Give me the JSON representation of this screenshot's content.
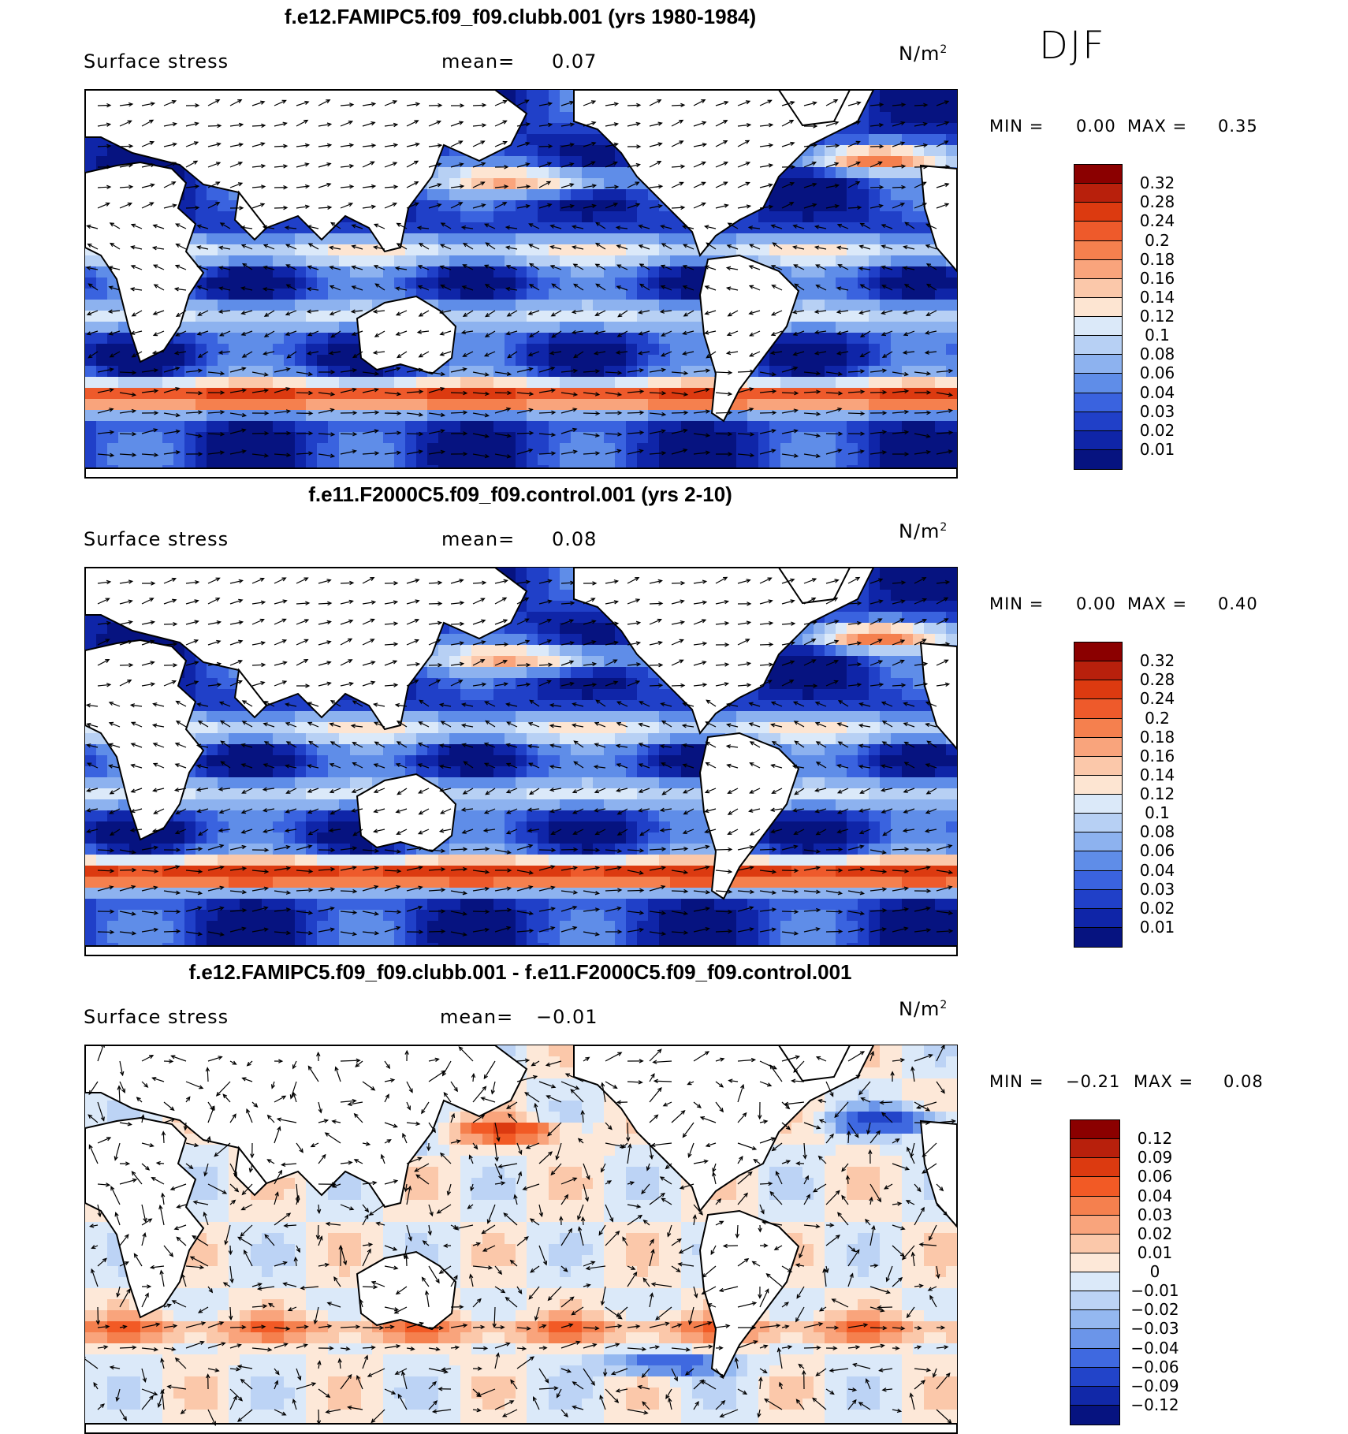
{
  "season_label": "DJF",
  "panels": [
    {
      "id": "p1",
      "title": "f.e12.FAMIPC5.f09_f09.clubb.001 (yrs 1980-1984)",
      "field_label": "Surface stress",
      "mean_label": "mean=",
      "mean_value": "0.07",
      "units_base": "N/m",
      "units_exp": "2",
      "min_label": "MIN =",
      "min_value": "0.00",
      "max_label": "MAX =",
      "max_value": "0.35",
      "colorbar_ticks": [
        "0.32",
        "0.28",
        "0.24",
        "0.2",
        "0.18",
        "0.16",
        "0.14",
        "0.12",
        "0.1",
        "0.08",
        "0.06",
        "0.04",
        "0.03",
        "0.02",
        "0.01"
      ],
      "colorbar_colors": [
        "#8b0000",
        "#b8200c",
        "#dc3a10",
        "#ee5a2b",
        "#f5804e",
        "#f9a47c",
        "#fbc8aa",
        "#fde5d2",
        "#dbe9f9",
        "#b7d0f4",
        "#8db2ef",
        "#5f8de8",
        "#3a63df",
        "#2040c8",
        "#0f25a8",
        "#061380"
      ],
      "style": "absolute"
    },
    {
      "id": "p2",
      "title": "f.e11.F2000C5.f09_f09.control.001 (yrs 2-10)",
      "field_label": "Surface stress",
      "mean_label": "mean=",
      "mean_value": "0.08",
      "units_base": "N/m",
      "units_exp": "2",
      "min_label": "MIN =",
      "min_value": "0.00",
      "max_label": "MAX =",
      "max_value": "0.40",
      "colorbar_ticks": [
        "0.32",
        "0.28",
        "0.24",
        "0.2",
        "0.18",
        "0.16",
        "0.14",
        "0.12",
        "0.1",
        "0.08",
        "0.06",
        "0.04",
        "0.03",
        "0.02",
        "0.01"
      ],
      "colorbar_colors": [
        "#8b0000",
        "#b8200c",
        "#dc3a10",
        "#ee5a2b",
        "#f5804e",
        "#f9a47c",
        "#fbc8aa",
        "#fde5d2",
        "#dbe9f9",
        "#b7d0f4",
        "#8db2ef",
        "#5f8de8",
        "#3a63df",
        "#2040c8",
        "#0f25a8",
        "#061380"
      ],
      "style": "absolute"
    },
    {
      "id": "p3",
      "title": "f.e12.FAMIPC5.f09_f09.clubb.001 - f.e11.F2000C5.f09_f09.control.001",
      "field_label": "Surface stress",
      "mean_label": "mean=",
      "mean_value": "−0.01",
      "units_base": "N/m",
      "units_exp": "2",
      "min_label": "MIN =",
      "min_value": "−0.21",
      "max_label": "MAX =",
      "max_value": "0.08",
      "colorbar_ticks": [
        "0.12",
        "0.09",
        "0.06",
        "0.04",
        "0.03",
        "0.02",
        "0.01",
        "0",
        "−0.01",
        "−0.02",
        "−0.03",
        "−0.04",
        "−0.06",
        "−0.09",
        "−0.12"
      ],
      "colorbar_colors": [
        "#8b0000",
        "#b8200c",
        "#dc3a10",
        "#f25a25",
        "#f5804e",
        "#f9a47c",
        "#fbc8aa",
        "#fde8d8",
        "#dbe9f9",
        "#bcd3f5",
        "#94b8f0",
        "#6b95e9",
        "#3f69e0",
        "#2244c9",
        "#1128a8",
        "#061380"
      ],
      "style": "difference"
    }
  ]
}
